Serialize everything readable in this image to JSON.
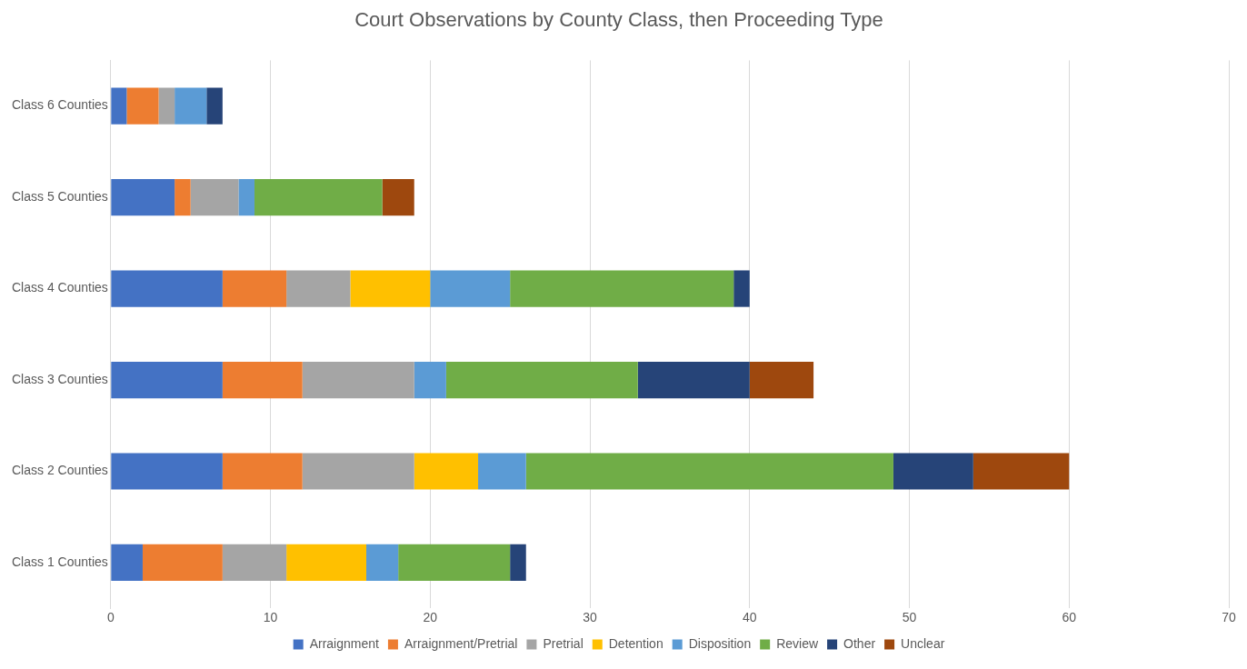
{
  "chart_data": {
    "type": "bar",
    "orientation": "horizontal",
    "stacked": true,
    "title": "Court Observations by County Class, then Proceeding Type",
    "categories": [
      "Class 6 Counties",
      "Class 5 Counties",
      "Class 4 Counties",
      "Class 3 Counties",
      "Class 2 Counties",
      "Class 1 Counties"
    ],
    "series": [
      {
        "name": "Arraignment",
        "color": "#4472c4",
        "values": [
          1,
          4,
          7,
          7,
          7,
          2
        ]
      },
      {
        "name": "Arraignment/Pretrial",
        "color": "#ed7d31",
        "values": [
          2,
          1,
          4,
          5,
          5,
          5
        ]
      },
      {
        "name": "Pretrial",
        "color": "#a5a5a5",
        "values": [
          1,
          3,
          4,
          7,
          7,
          4
        ]
      },
      {
        "name": "Detention",
        "color": "#ffc000",
        "values": [
          0,
          0,
          5,
          0,
          4,
          5
        ]
      },
      {
        "name": "Disposition",
        "color": "#5b9bd5",
        "values": [
          2,
          1,
          5,
          2,
          3,
          2
        ]
      },
      {
        "name": "Review",
        "color": "#70ad47",
        "values": [
          0,
          8,
          14,
          12,
          23,
          7
        ]
      },
      {
        "name": "Other",
        "color": "#264478",
        "values": [
          1,
          0,
          1,
          7,
          5,
          1
        ]
      },
      {
        "name": "Unclear",
        "color": "#9e480e",
        "values": [
          0,
          2,
          0,
          4,
          6,
          0
        ]
      }
    ],
    "xlim": [
      0,
      70
    ],
    "xticks": [
      0,
      10,
      20,
      30,
      40,
      50,
      60,
      70
    ],
    "grid": "x",
    "legend": "bottom"
  }
}
